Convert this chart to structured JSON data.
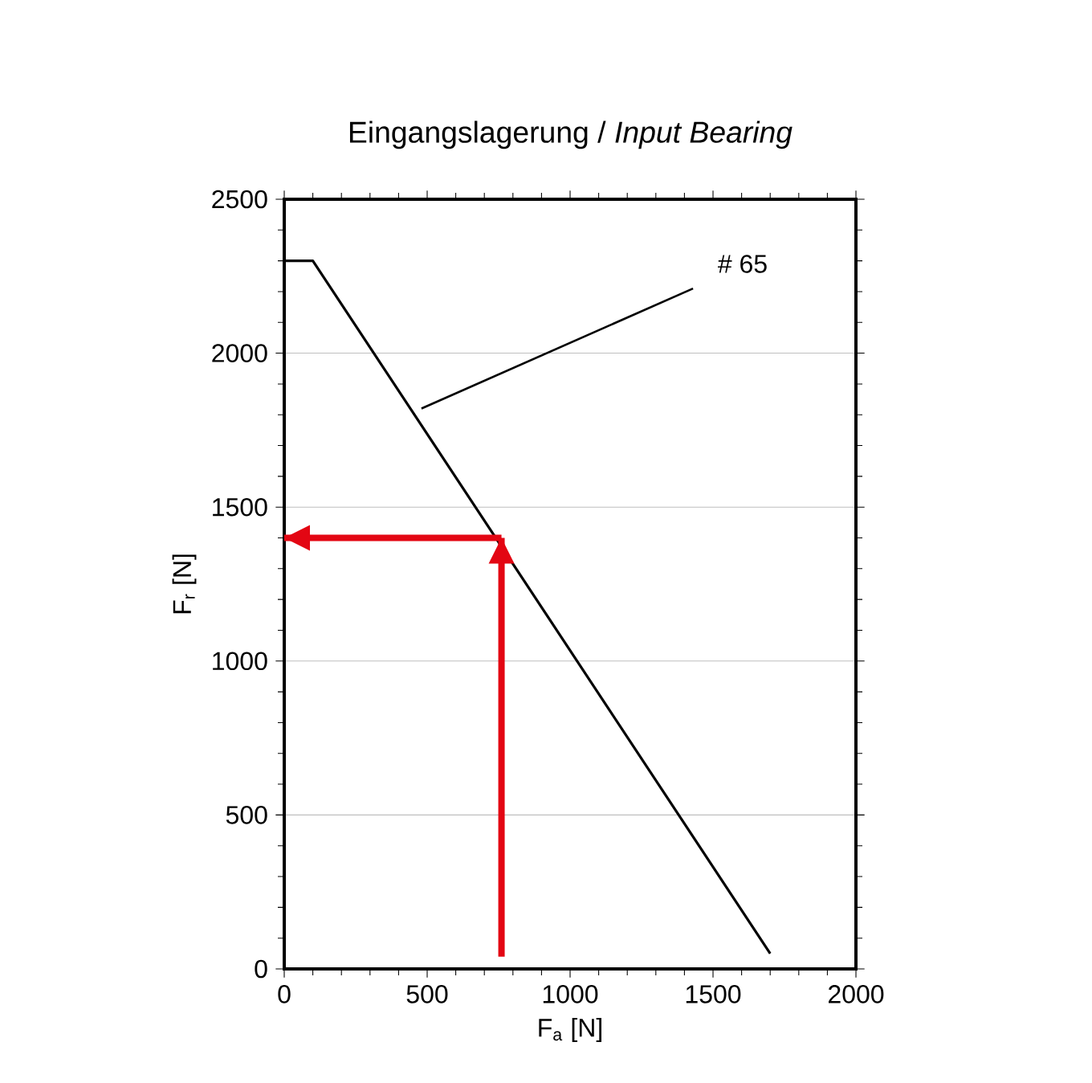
{
  "chart_data": {
    "type": "line",
    "title": "Eingangslagerung / *Input Bearing*",
    "xlabel": "F$_{a}$ [N]",
    "ylabel": "F$_{r}$ [N]",
    "series": [
      {
        "color": "#000000",
        "x": [
          0,
          100,
          1700
        ],
        "values": [
          2300,
          2300,
          50
        ]
      },
      {
        "color": "#e30613",
        "x": [
          760,
          760
        ],
        "values": [
          40,
          1400
        ]
      },
      {
        "color": "#e30613",
        "x": [
          760,
          0
        ],
        "values": [
          1400,
          1400
        ]
      }
    ],
    "annotations": [
      {
        "text": "# 65",
        "x": 480,
        "y": 1820
      }
    ],
    "xlim": [
      0,
      2000
    ],
    "ylim": [
      0,
      2500
    ],
    "xticks": [
      0,
      500,
      1000,
      1500,
      2000
    ],
    "yticks": [
      0,
      500,
      1000,
      1500,
      2000,
      2500
    ],
    "grid": "y",
    "marker": "none",
    "line_style": "solid"
  }
}
